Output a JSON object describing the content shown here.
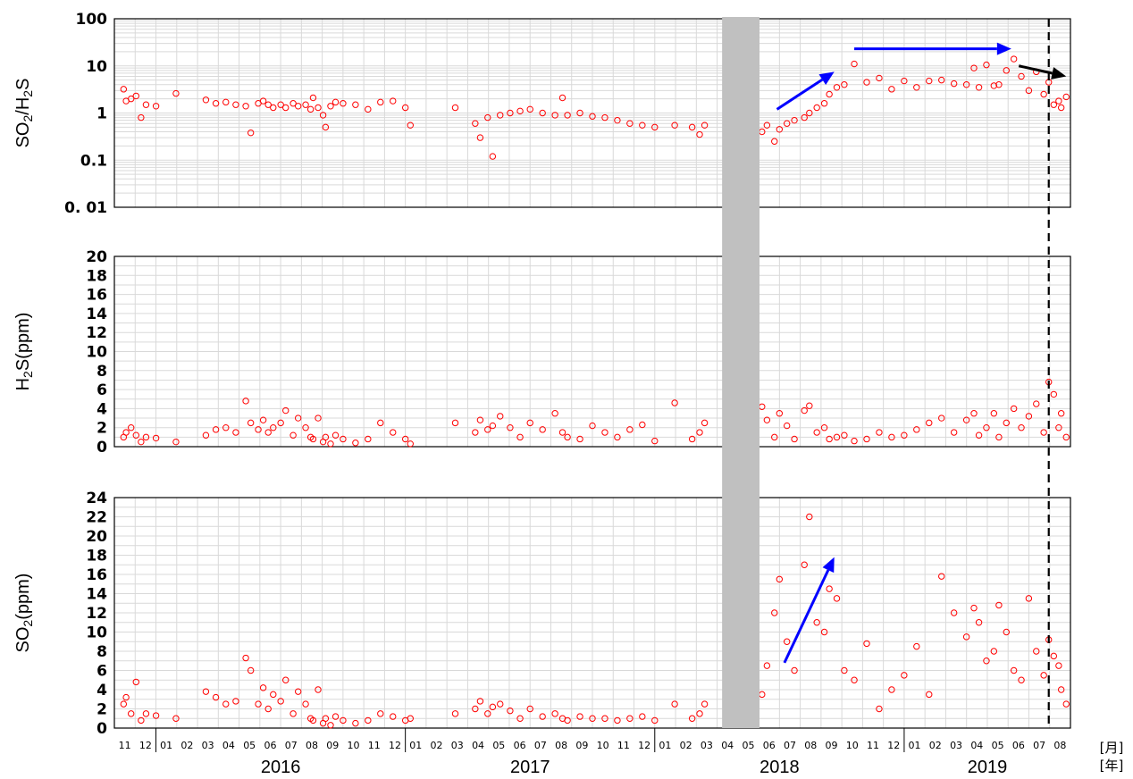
{
  "chart_data": [
    {
      "type": "scatter",
      "ylabel_main": "SO",
      "ylabel_sub1": "2",
      "ylabel_mid": "/H",
      "ylabel_sub2": "2",
      "ylabel_end": "S",
      "yscale": "log",
      "ylim": [
        0.01,
        100
      ],
      "yticks": [
        "0. 01",
        "0.1",
        "1",
        "10",
        "100"
      ],
      "marker_color": "#ff0000",
      "arrow_colors": [
        "#0000ff",
        "#000000"
      ],
      "series": [
        {
          "x": [
            2015.87,
            2015.88,
            2015.9,
            2015.92,
            2015.94,
            2015.96,
            2016.0,
            2016.08,
            2016.2,
            2016.24,
            2016.28,
            2016.32,
            2016.36,
            2016.38,
            2016.41,
            2016.43,
            2016.45,
            2016.47,
            2016.5,
            2016.52,
            2016.55,
            2016.57,
            2016.6,
            2016.62,
            2016.63,
            2016.65,
            2016.67,
            2016.68,
            2016.7,
            2016.72,
            2016.75,
            2016.8,
            2016.85,
            2016.9,
            2016.95,
            2017.0,
            2017.02,
            2017.2,
            2017.28,
            2017.3,
            2017.33,
            2017.35,
            2017.38,
            2017.42,
            2017.46,
            2017.5,
            2017.55,
            2017.6,
            2017.63,
            2017.65,
            2017.7,
            2017.75,
            2017.8,
            2017.85,
            2017.9,
            2017.95,
            2018.0,
            2018.08,
            2018.15,
            2018.18,
            2018.2,
            2018.43,
            2018.45,
            2018.48,
            2018.5,
            2018.53,
            2018.56,
            2018.6,
            2018.62,
            2018.65,
            2018.68,
            2018.7,
            2018.73,
            2018.76,
            2018.8,
            2018.85,
            2018.9,
            2018.95,
            2019.0,
            2019.05,
            2019.1,
            2019.15,
            2019.2,
            2019.25,
            2019.28,
            2019.3,
            2019.33,
            2019.36,
            2019.38,
            2019.41,
            2019.44,
            2019.47,
            2019.5,
            2019.53,
            2019.56,
            2019.58,
            2019.6,
            2019.62,
            2019.63,
            2019.65
          ],
          "y": [
            3.2,
            1.8,
            2.0,
            2.3,
            0.8,
            1.5,
            1.4,
            2.6,
            1.9,
            1.6,
            1.7,
            1.5,
            1.4,
            0.38,
            1.6,
            1.8,
            1.5,
            1.3,
            1.5,
            1.3,
            1.6,
            1.4,
            1.5,
            1.2,
            2.1,
            1.3,
            0.9,
            0.5,
            1.4,
            1.7,
            1.6,
            1.5,
            1.2,
            1.7,
            1.8,
            1.3,
            0.55,
            1.3,
            0.6,
            0.3,
            0.8,
            0.12,
            0.9,
            1.0,
            1.1,
            1.2,
            1.0,
            0.9,
            2.1,
            0.9,
            1.0,
            0.85,
            0.8,
            0.7,
            0.6,
            0.55,
            0.5,
            0.55,
            0.5,
            0.35,
            0.55,
            0.4,
            0.55,
            0.25,
            0.45,
            0.6,
            0.7,
            0.8,
            1.0,
            1.3,
            1.6,
            2.5,
            3.5,
            4.0,
            11.0,
            4.5,
            5.5,
            3.2,
            4.8,
            3.5,
            4.8,
            5.0,
            4.2,
            4.0,
            9.0,
            3.5,
            10.5,
            3.8,
            4.0,
            8.0,
            14.0,
            6.0,
            3.0,
            7.5,
            2.5,
            4.5,
            1.5,
            1.8,
            1.3,
            2.2
          ]
        }
      ],
      "arrows": [
        {
          "color": "#0000ff",
          "from": [
            2018.49,
            1.2
          ],
          "to": [
            2018.72,
            7.5
          ]
        },
        {
          "color": "#0000ff",
          "from": [
            2018.8,
            23
          ],
          "to": [
            2019.43,
            23
          ]
        },
        {
          "color": "#000000",
          "from": [
            2019.46,
            10
          ],
          "to": [
            2019.65,
            6.0
          ]
        }
      ]
    },
    {
      "type": "scatter",
      "ylabel_main": "H",
      "ylabel_sub1": "2",
      "ylabel_end": "S(ppm)",
      "ylim": [
        0,
        20
      ],
      "yticks": [
        "0",
        "2",
        "4",
        "6",
        "8",
        "10",
        "12",
        "14",
        "16",
        "18",
        "20"
      ],
      "marker_color": "#ff0000",
      "series": [
        {
          "x": [
            2015.87,
            2015.88,
            2015.9,
            2015.92,
            2015.94,
            2015.96,
            2016.0,
            2016.08,
            2016.2,
            2016.24,
            2016.28,
            2016.32,
            2016.36,
            2016.38,
            2016.41,
            2016.43,
            2016.45,
            2016.47,
            2016.5,
            2016.52,
            2016.55,
            2016.57,
            2016.6,
            2016.62,
            2016.63,
            2016.65,
            2016.67,
            2016.68,
            2016.7,
            2016.72,
            2016.75,
            2016.8,
            2016.85,
            2016.9,
            2016.95,
            2017.0,
            2017.02,
            2017.2,
            2017.28,
            2017.3,
            2017.33,
            2017.35,
            2017.38,
            2017.42,
            2017.46,
            2017.5,
            2017.55,
            2017.6,
            2017.63,
            2017.65,
            2017.7,
            2017.75,
            2017.8,
            2017.85,
            2017.9,
            2017.95,
            2018.0,
            2018.08,
            2018.15,
            2018.18,
            2018.2,
            2018.43,
            2018.45,
            2018.48,
            2018.5,
            2018.53,
            2018.56,
            2018.6,
            2018.62,
            2018.65,
            2018.68,
            2018.7,
            2018.73,
            2018.76,
            2018.8,
            2018.85,
            2018.9,
            2018.95,
            2019.0,
            2019.05,
            2019.1,
            2019.15,
            2019.2,
            2019.25,
            2019.28,
            2019.3,
            2019.33,
            2019.36,
            2019.38,
            2019.41,
            2019.44,
            2019.47,
            2019.5,
            2019.53,
            2019.56,
            2019.58,
            2019.6,
            2019.62,
            2019.63,
            2019.65
          ],
          "y": [
            1.0,
            1.5,
            2.0,
            1.2,
            0.5,
            1.0,
            0.9,
            0.5,
            1.2,
            1.8,
            2.0,
            1.5,
            4.8,
            2.5,
            1.8,
            2.8,
            1.5,
            2.0,
            2.5,
            3.8,
            1.2,
            3.0,
            2.0,
            1.0,
            0.8,
            3.0,
            0.5,
            1.0,
            0.3,
            1.2,
            0.8,
            0.4,
            0.8,
            2.5,
            1.5,
            0.8,
            0.3,
            2.5,
            1.5,
            2.8,
            1.8,
            2.2,
            3.2,
            2.0,
            1.0,
            2.5,
            1.8,
            3.5,
            1.5,
            1.0,
            0.8,
            2.2,
            1.5,
            1.0,
            1.8,
            2.3,
            0.6,
            4.6,
            0.8,
            1.5,
            2.5,
            4.2,
            2.8,
            1.0,
            3.5,
            2.2,
            0.8,
            3.8,
            4.3,
            1.5,
            2.0,
            0.8,
            1.0,
            1.2,
            0.6,
            0.8,
            1.5,
            1.0,
            1.2,
            1.8,
            2.5,
            3.0,
            1.5,
            2.8,
            3.5,
            1.2,
            2.0,
            3.5,
            1.0,
            2.5,
            4.0,
            2.0,
            3.2,
            4.5,
            1.5,
            6.8,
            5.5,
            2.0,
            3.5,
            1.0
          ]
        }
      ]
    },
    {
      "type": "scatter",
      "ylabel_main": "SO",
      "ylabel_sub1": "2",
      "ylabel_end": "(ppm)",
      "ylim": [
        0,
        24
      ],
      "yticks": [
        "0",
        "2",
        "4",
        "6",
        "8",
        "10",
        "12",
        "14",
        "16",
        "18",
        "20",
        "22",
        "24"
      ],
      "marker_color": "#ff0000",
      "series": [
        {
          "x": [
            2015.87,
            2015.88,
            2015.9,
            2015.92,
            2015.94,
            2015.96,
            2016.0,
            2016.08,
            2016.2,
            2016.24,
            2016.28,
            2016.32,
            2016.36,
            2016.38,
            2016.41,
            2016.43,
            2016.45,
            2016.47,
            2016.5,
            2016.52,
            2016.55,
            2016.57,
            2016.6,
            2016.62,
            2016.63,
            2016.65,
            2016.67,
            2016.68,
            2016.7,
            2016.72,
            2016.75,
            2016.8,
            2016.85,
            2016.9,
            2016.95,
            2017.0,
            2017.02,
            2017.2,
            2017.28,
            2017.3,
            2017.33,
            2017.35,
            2017.38,
            2017.42,
            2017.46,
            2017.5,
            2017.55,
            2017.6,
            2017.63,
            2017.65,
            2017.7,
            2017.75,
            2017.8,
            2017.85,
            2017.9,
            2017.95,
            2018.0,
            2018.08,
            2018.15,
            2018.18,
            2018.2,
            2018.43,
            2018.45,
            2018.48,
            2018.5,
            2018.53,
            2018.56,
            2018.6,
            2018.62,
            2018.65,
            2018.68,
            2018.7,
            2018.73,
            2018.76,
            2018.8,
            2018.85,
            2018.9,
            2018.95,
            2019.0,
            2019.05,
            2019.1,
            2019.15,
            2019.2,
            2019.25,
            2019.28,
            2019.3,
            2019.33,
            2019.36,
            2019.38,
            2019.41,
            2019.44,
            2019.47,
            2019.5,
            2019.53,
            2019.56,
            2019.58,
            2019.6,
            2019.62,
            2019.63,
            2019.65
          ],
          "y": [
            2.5,
            3.2,
            1.5,
            4.8,
            0.8,
            1.5,
            1.3,
            1.0,
            3.8,
            3.2,
            2.5,
            2.8,
            7.3,
            6.0,
            2.5,
            4.2,
            2.0,
            3.5,
            2.8,
            5.0,
            1.5,
            3.8,
            2.5,
            1.0,
            0.8,
            4.0,
            0.5,
            1.0,
            0.3,
            1.2,
            0.8,
            0.5,
            0.8,
            1.5,
            1.2,
            0.8,
            1.0,
            1.5,
            2.0,
            2.8,
            1.5,
            2.2,
            2.5,
            1.8,
            1.0,
            2.0,
            1.2,
            1.5,
            1.0,
            0.8,
            1.2,
            1.0,
            1.0,
            0.8,
            1.0,
            1.2,
            0.8,
            2.5,
            1.0,
            1.5,
            2.5,
            3.5,
            6.5,
            12.0,
            15.5,
            9.0,
            6.0,
            17.0,
            22.0,
            11.0,
            10.0,
            14.5,
            13.5,
            6.0,
            5.0,
            8.8,
            2.0,
            4.0,
            5.5,
            8.5,
            3.5,
            15.8,
            12.0,
            9.5,
            12.5,
            11.0,
            7.0,
            8.0,
            12.8,
            10.0,
            6.0,
            5.0,
            13.5,
            8.0,
            5.5,
            9.2,
            7.5,
            6.5,
            4.0,
            2.5
          ]
        }
      ],
      "arrows": [
        {
          "color": "#0000ff",
          "from": [
            2018.52,
            6.8
          ],
          "to": [
            2018.72,
            17.8
          ]
        }
      ]
    }
  ],
  "x_axis": {
    "months": [
      "11",
      "12",
      "01",
      "02",
      "03",
      "04",
      "05",
      "06",
      "07",
      "08",
      "09",
      "10",
      "11",
      "12",
      "01",
      "02",
      "03",
      "04",
      "05",
      "06",
      "07",
      "08",
      "09",
      "10",
      "11",
      "12",
      "01",
      "02",
      "03",
      "04",
      "05",
      "06",
      "07",
      "08",
      "09",
      "10",
      "11",
      "12",
      "01",
      "02",
      "03",
      "04",
      "05",
      "06",
      "07",
      "08"
    ],
    "years": [
      "2016",
      "2017",
      "2018",
      "2019"
    ],
    "month_unit": "[月]",
    "year_unit": "[年]"
  },
  "gap_shading": {
    "from": 2018.27,
    "to": 2018.42,
    "color": "#c0c0c0"
  },
  "event_line": {
    "x": 2019.58,
    "style": "dashed",
    "color": "#000000"
  }
}
